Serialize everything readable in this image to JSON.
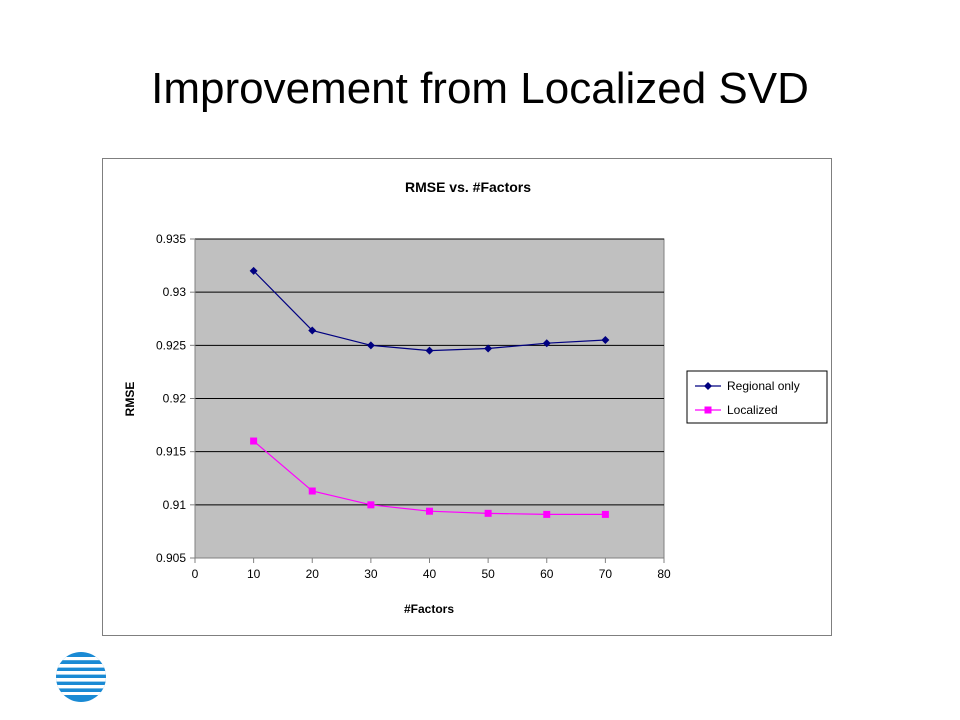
{
  "slide": {
    "title": "Improvement from Localized SVD"
  },
  "logo": {
    "name": "att-globe-logo",
    "colors": [
      "#1a8ad4",
      "#5bb8ef",
      "#ffffff"
    ]
  },
  "chart_data": {
    "type": "line",
    "title": "RMSE vs. #Factors",
    "xlabel": "#Factors",
    "ylabel": "RMSE",
    "xlim": [
      0,
      80
    ],
    "ylim": [
      0.905,
      0.935
    ],
    "xticks": [
      "0",
      "10",
      "20",
      "30",
      "40",
      "50",
      "60",
      "70",
      "80"
    ],
    "yticks": [
      "0.905",
      "0.91",
      "0.915",
      "0.92",
      "0.925",
      "0.93",
      "0.935"
    ],
    "grid": "horizontal",
    "plot_background": "#c0c0c0",
    "legend_position": "right",
    "x": [
      10,
      20,
      30,
      40,
      50,
      60,
      70
    ],
    "series": [
      {
        "name": "Regional only",
        "marker": "diamond",
        "color": "#000080",
        "values": [
          0.932,
          0.9264,
          0.925,
          0.9245,
          0.9247,
          0.9252,
          0.9255
        ]
      },
      {
        "name": "Localized",
        "marker": "square",
        "color": "#ff00ff",
        "values": [
          0.916,
          0.9113,
          0.91,
          0.9094,
          0.9092,
          0.9091,
          0.9091
        ]
      }
    ]
  }
}
